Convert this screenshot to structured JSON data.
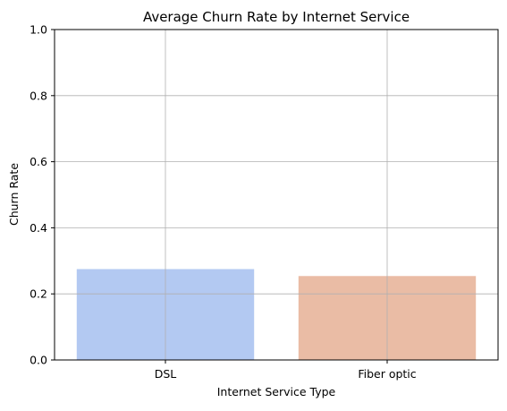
{
  "chart_data": {
    "type": "bar",
    "title": "Average Churn Rate by Internet Service",
    "xlabel": "Internet Service Type",
    "ylabel": "Churn Rate",
    "categories": [
      "DSL",
      "Fiber optic"
    ],
    "values": [
      0.275,
      0.254
    ],
    "ylim": [
      0,
      1
    ],
    "yticks": [
      "0.0",
      "0.2",
      "0.4",
      "0.6",
      "0.8",
      "1.0"
    ],
    "grid": true,
    "bar_colors": [
      "#b3c9f2",
      "#eabca5"
    ]
  }
}
